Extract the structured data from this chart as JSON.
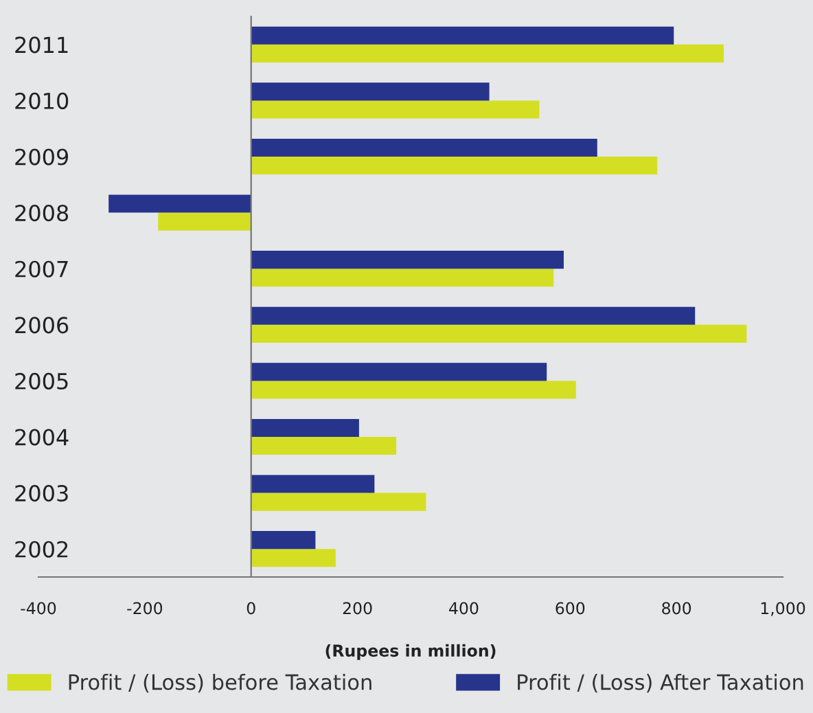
{
  "chart_data": {
    "type": "bar",
    "orientation": "horizontal",
    "xlabel": "(Rupees in million)",
    "categories": [
      "2011",
      "2010",
      "2009",
      "2008",
      "2007",
      "2006",
      "2005",
      "2004",
      "2003",
      "2002"
    ],
    "series": [
      {
        "name": "Profit / (Loss) before Taxation",
        "color": "#d4df23",
        "values": [
          889,
          542,
          764,
          -175,
          569,
          932,
          611,
          273,
          329,
          159
        ]
      },
      {
        "name": "Profit / (Loss) After Taxation",
        "color": "#27348b",
        "values": [
          795,
          448,
          651,
          -268,
          588,
          835,
          556,
          203,
          232,
          121
        ]
      }
    ],
    "xlim": [
      -400,
      1000
    ],
    "xticks": [
      -400,
      -200,
      0,
      200,
      400,
      600,
      800,
      {
        "value": 1000,
        "label": "1,000"
      }
    ],
    "legend": "bottom"
  }
}
